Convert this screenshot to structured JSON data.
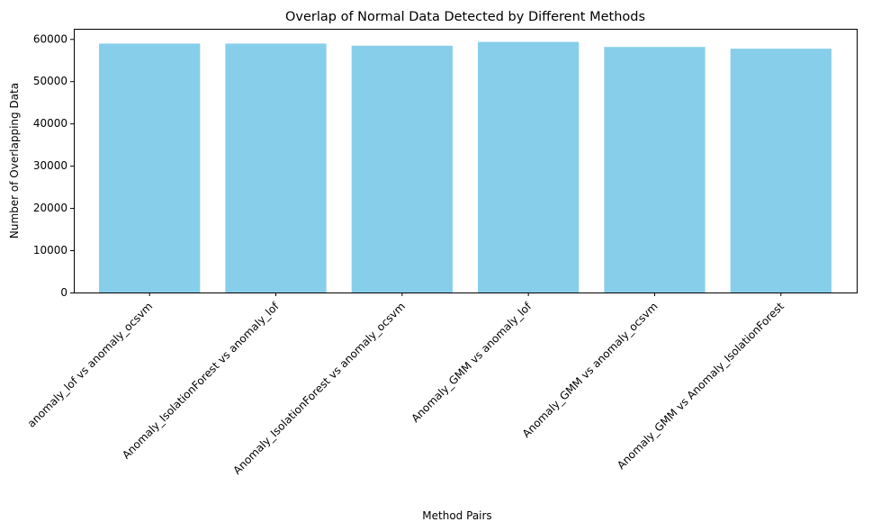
{
  "chart_data": {
    "type": "bar",
    "title": "Overlap of Normal Data Detected by Different Methods",
    "xlabel": "Method Pairs",
    "ylabel": "Number of Overlapping Data",
    "categories": [
      "anomaly_lof vs anomaly_ocsvm",
      "Anomaly_IsolationForest vs anomaly_lof",
      "Anomaly_IsolationForest vs anomaly_ocsvm",
      "Anomaly_GMM vs anomaly_lof",
      "Anomaly_GMM vs anomaly_ocsvm",
      "Anomaly_GMM vs Anomaly_IsolationForest"
    ],
    "values": [
      58900,
      58900,
      58400,
      59300,
      58100,
      57700
    ],
    "ylim": [
      0,
      62400
    ],
    "yticks": [
      0,
      10000,
      20000,
      30000,
      40000,
      50000,
      60000
    ],
    "ytick_labels": [
      "0",
      "10000",
      "20000",
      "30000",
      "40000",
      "50000",
      "60000"
    ],
    "bar_color": "#87ceeb",
    "grid": false,
    "legend": null
  }
}
